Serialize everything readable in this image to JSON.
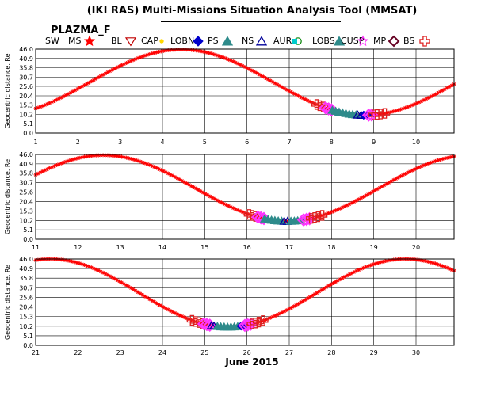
{
  "header": {
    "title": "(IKI RAS) Multi-Missions Situation Analysis Tool (MMSAT)",
    "mission": "PLAZMA_F"
  },
  "legend": {
    "items": [
      {
        "label": "SW",
        "symbol": "none",
        "color": "#ff0000"
      },
      {
        "label": "MS",
        "symbol": "star",
        "color": "#ff0000"
      },
      {
        "label": "BL",
        "symbol": "triangle-down",
        "color": "#c00000"
      },
      {
        "label": "CAP",
        "symbol": "dot",
        "color": "#ffd700"
      },
      {
        "label": "LOBN",
        "symbol": "diamond-filled",
        "color": "#0000cc"
      },
      {
        "label": "PS",
        "symbol": "triangle-filled",
        "color": "#2e8b8b"
      },
      {
        "label": "NS",
        "symbol": "triangle-open",
        "color": "#000099"
      },
      {
        "label": "AUR",
        "symbol": "circle-open",
        "color": "#008000"
      },
      {
        "label": "LOBS",
        "symbol": "square-filled",
        "color": "#00cccc"
      },
      {
        "label": "CUSP",
        "symbol": "triangle-filled",
        "color": "#2e8b8b"
      },
      {
        "label": "MP",
        "symbol": "star-open",
        "color": "#ff33ff"
      },
      {
        "label": "BS",
        "symbol": "diamond-open",
        "color": "#660022"
      },
      {
        "label": "",
        "symbol": "cross-open",
        "color": "#dd2222"
      }
    ]
  },
  "month_label": "June 2015",
  "chart_data": [
    {
      "type": "scatter",
      "title": "",
      "xlabel": "",
      "ylabel": "Geocentric distance, Re",
      "xlim": [
        1,
        10.9
      ],
      "ylim": [
        0,
        46.0
      ],
      "x_ticks": [
        1,
        2,
        3,
        4,
        5,
        6,
        7,
        8,
        9,
        10
      ],
      "y_ticks": [
        0.0,
        5.1,
        10.2,
        15.3,
        20.4,
        25.6,
        30.7,
        35.8,
        40.9,
        46.0
      ],
      "grid": true,
      "orbit": {
        "apogee_x": 4.45,
        "apogee_r": 45.8,
        "perigee_r": 9.8,
        "period_days": 8.7
      },
      "segments": [
        {
          "region": "BS",
          "x": [
            7.65,
            7.72,
            7.8,
            7.88
          ]
        },
        {
          "region": "MP",
          "x": [
            7.86,
            7.93,
            8.0
          ]
        },
        {
          "region": "PS",
          "x": [
            8.02,
            8.1,
            8.18,
            8.26,
            8.34,
            8.42,
            8.5,
            8.58
          ]
        },
        {
          "region": "NS",
          "x": [
            8.62,
            8.7
          ]
        },
        {
          "region": "LOBN",
          "x": [
            8.76,
            8.84
          ]
        },
        {
          "region": "MP",
          "x": [
            8.88,
            8.95
          ]
        },
        {
          "region": "BS",
          "x": [
            9.0,
            9.08,
            9.16,
            9.26
          ]
        }
      ]
    },
    {
      "type": "scatter",
      "title": "",
      "xlabel": "",
      "ylabel": "Geocentric distance, Re",
      "xlim": [
        11,
        20.9
      ],
      "ylim": [
        0,
        46.0
      ],
      "x_ticks": [
        11,
        12,
        13,
        14,
        15,
        16,
        17,
        18,
        19,
        20
      ],
      "y_ticks": [
        0.0,
        5.1,
        10.2,
        15.3,
        20.4,
        25.6,
        30.7,
        35.8,
        40.9,
        46.0
      ],
      "grid": true,
      "orbit": {
        "apogee_x": 12.6,
        "apogee_r": 45.6,
        "perigee_r": 9.8,
        "period_days": 8.7
      },
      "segments": [
        {
          "region": "BS",
          "x": [
            16.05,
            16.12,
            16.2,
            16.28
          ]
        },
        {
          "region": "MP",
          "x": [
            16.26,
            16.33,
            16.4
          ]
        },
        {
          "region": "PS",
          "x": [
            16.42,
            16.5,
            16.58,
            16.66,
            16.74,
            16.82
          ]
        },
        {
          "region": "NS",
          "x": [
            16.88,
            16.96
          ]
        },
        {
          "region": "PS",
          "x": [
            17.04,
            17.12,
            17.2,
            17.28
          ]
        },
        {
          "region": "MP",
          "x": [
            17.34,
            17.41,
            17.48
          ]
        },
        {
          "region": "BS",
          "x": [
            17.52,
            17.6,
            17.68,
            17.78
          ]
        }
      ]
    },
    {
      "type": "scatter",
      "title": "",
      "xlabel": "",
      "ylabel": "Geocentric distance, Re",
      "xlim": [
        21,
        30.9
      ],
      "ylim": [
        0,
        46.0
      ],
      "x_ticks": [
        21,
        22,
        23,
        24,
        25,
        26,
        27,
        28,
        29,
        30
      ],
      "y_ticks": [
        0.0,
        5.1,
        10.2,
        15.3,
        20.4,
        25.6,
        30.7,
        35.8,
        40.9,
        46.0
      ],
      "grid": true,
      "orbit": {
        "apogee_x": 21.35,
        "apogee_r": 46.0,
        "perigee_r": 9.8,
        "period_days": 8.4
      },
      "segments": [
        {
          "region": "BS",
          "x": [
            24.7,
            24.78,
            24.86,
            24.94
          ]
        },
        {
          "region": "MP",
          "x": [
            24.98,
            25.05,
            25.12
          ]
        },
        {
          "region": "NS",
          "x": [
            25.16,
            25.22
          ]
        },
        {
          "region": "PS",
          "x": [
            25.3,
            25.38,
            25.46,
            25.54,
            25.62,
            25.7,
            25.78
          ]
        },
        {
          "region": "LOBN",
          "x": [
            25.86,
            25.92
          ]
        },
        {
          "region": "MP",
          "x": [
            25.95,
            26.02,
            26.09
          ]
        },
        {
          "region": "BS",
          "x": [
            26.12,
            26.2,
            26.28,
            26.38
          ]
        }
      ]
    }
  ]
}
